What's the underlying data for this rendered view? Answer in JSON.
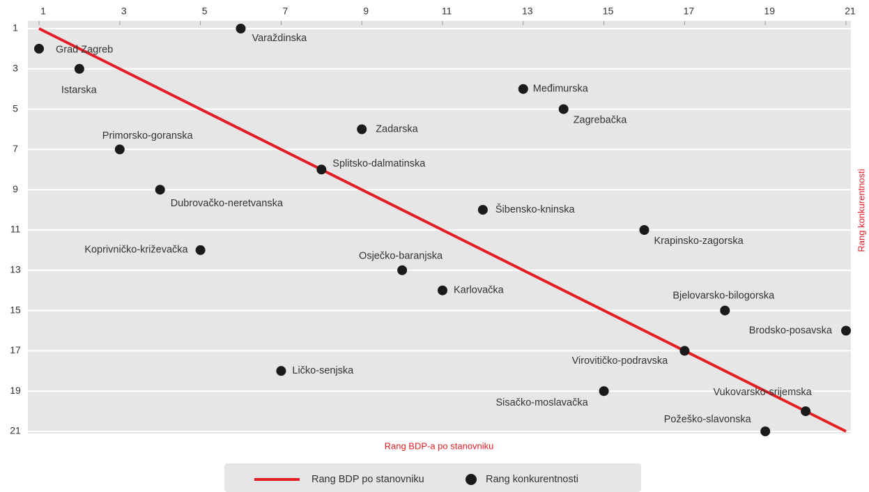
{
  "chart_data": {
    "type": "scatter",
    "xlabel": "Rang BDP-a po stanovniku",
    "ylabel": "Rang konkurentnosti",
    "xlim": [
      1,
      21
    ],
    "ylim": [
      21,
      1
    ],
    "xticks": [
      1,
      3,
      5,
      7,
      9,
      11,
      13,
      15,
      17,
      19,
      21
    ],
    "yticks": [
      1,
      3,
      5,
      7,
      9,
      11,
      13,
      15,
      17,
      19,
      21
    ],
    "grid": true,
    "legend": "bottom",
    "series": [
      {
        "name": "Rang BDP po stanovniku",
        "type": "line",
        "color": "#e31e24",
        "x": [
          1,
          21
        ],
        "values": [
          1,
          21
        ]
      },
      {
        "name": "Rang konkurentnosti",
        "type": "scatter",
        "color": "#1a1a1a",
        "labels": [
          "Grad Zagreb",
          "Varaždinska",
          "Istarska",
          "Međimurska",
          "Zagrebačka",
          "Zadarska",
          "Primorsko-goranska",
          "Splitsko-dalmatinska",
          "Dubrovačko-neretvanska",
          "Šibensko-kninska",
          "Krapinsko-zagorska",
          "Koprivničko-križevačka",
          "Osječko-baranjska",
          "Karlovačka",
          "Bjelovarsko-bilogorska",
          "Brodsko-posavska",
          "Virovitičko-podravska",
          "Ličko-senjska",
          "Sisačko-moslavačka",
          "Vukovarsko-srijemska",
          "Požeško-slavonska"
        ],
        "x": [
          1,
          6,
          2,
          13,
          14,
          9,
          3,
          8,
          4,
          12,
          16,
          5,
          10,
          11,
          18,
          21,
          17,
          7,
          15,
          20,
          19
        ],
        "values": [
          2,
          1,
          3,
          4,
          5,
          6,
          7,
          8,
          9,
          10,
          11,
          12,
          13,
          14,
          15,
          16,
          17,
          18,
          19,
          20,
          21
        ]
      }
    ]
  }
}
